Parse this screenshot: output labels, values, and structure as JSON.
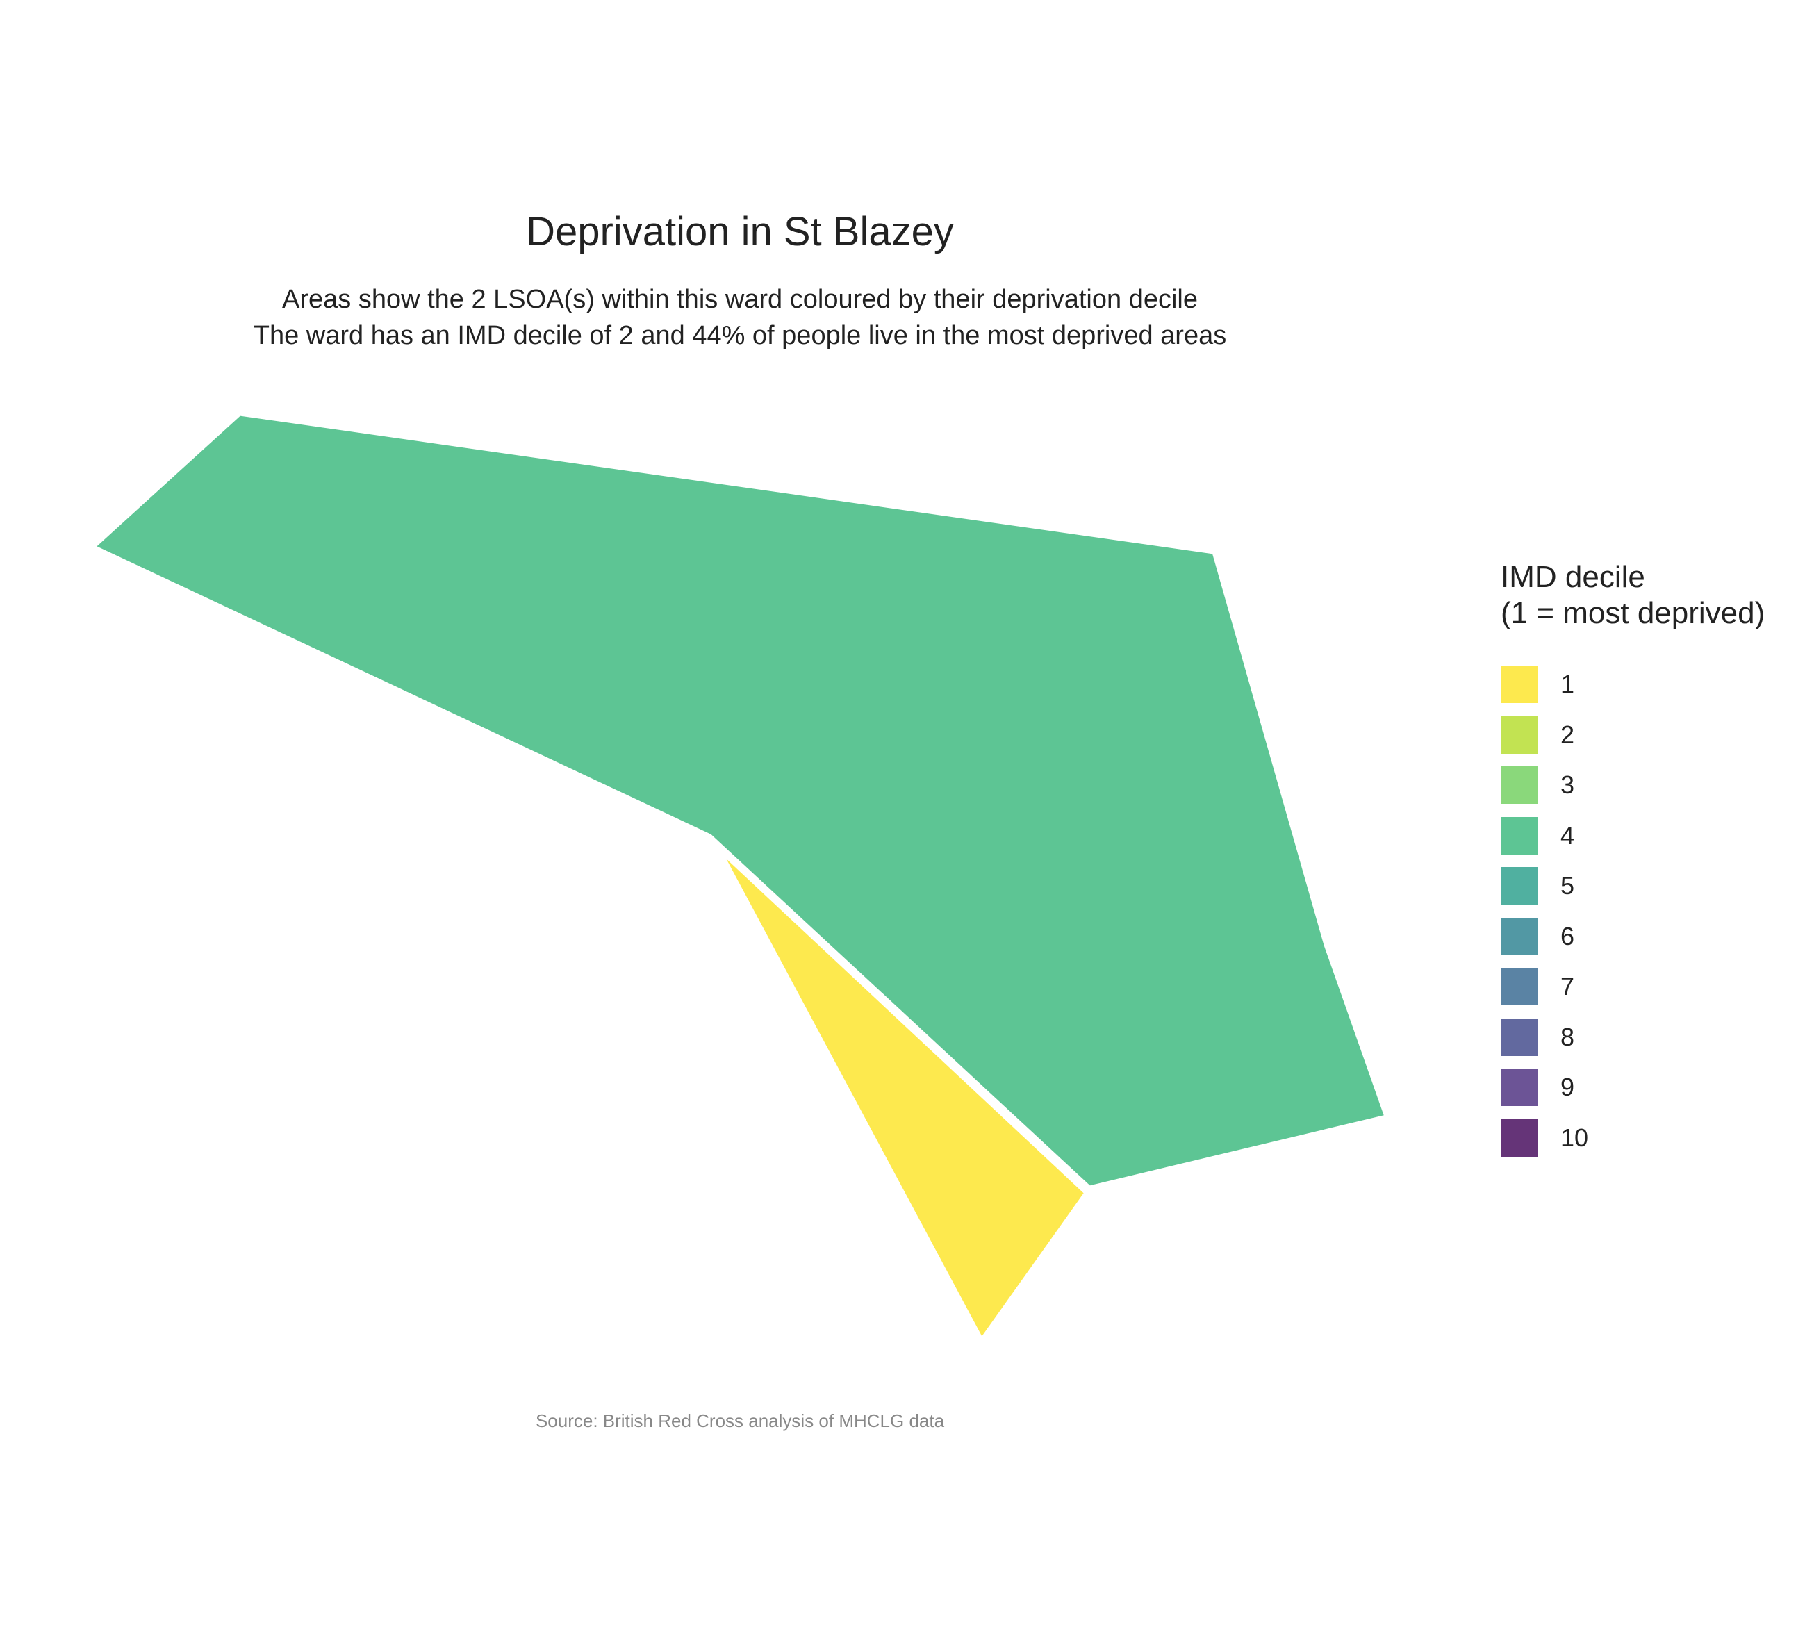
{
  "title": "Deprivation in St Blazey",
  "subtitle_lines": [
    "Areas show the 2 LSOA(s) within this ward coloured by their deprivation decile",
    "The ward has an IMD decile of 2 and 44% of people live in the most deprived areas"
  ],
  "legend": {
    "title_lines": [
      "IMD decile",
      "(1 = most deprived)"
    ],
    "items": [
      {
        "label": "1",
        "color": "#FDE94E"
      },
      {
        "label": "2",
        "color": "#C2E352"
      },
      {
        "label": "3",
        "color": "#8AD87B"
      },
      {
        "label": "4",
        "color": "#5DC594"
      },
      {
        "label": "5",
        "color": "#50B0A0"
      },
      {
        "label": "6",
        "color": "#5298A4"
      },
      {
        "label": "7",
        "color": "#5A83A4"
      },
      {
        "label": "8",
        "color": "#62699F"
      },
      {
        "label": "9",
        "color": "#6C5496"
      },
      {
        "label": "10",
        "color": "#653478"
      }
    ]
  },
  "areas": [
    {
      "decile": 4,
      "color": "#5DC594"
    },
    {
      "decile": 1,
      "color": "#FDE94E"
    }
  ],
  "caption": "Source: British Red Cross analysis of MHCLG data"
}
